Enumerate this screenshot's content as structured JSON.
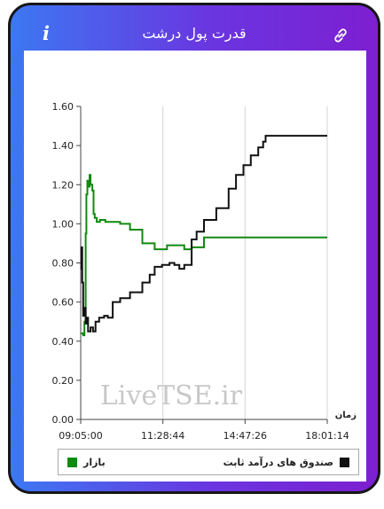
{
  "header": {
    "title": "قدرت پول درشت",
    "info_icon": "i",
    "link_icon": "link-icon"
  },
  "chart_data": {
    "type": "line",
    "x_label": "زمان",
    "x_ticks": [
      "09:05:00",
      "11:28:44",
      "14:47:26",
      "18:01:14"
    ],
    "y_ticks": [
      "0.00",
      "0.20",
      "0.40",
      "0.60",
      "0.80",
      "1.00",
      "1.20",
      "1.40",
      "1.60"
    ],
    "ylim": [
      0,
      1.6
    ],
    "watermark": "LiveTSE.ir",
    "legend_position": "bottom",
    "series": [
      {
        "name": "بازار",
        "color": "#108a10",
        "points": [
          [
            0,
            0.44
          ],
          [
            0.01,
            0.43
          ],
          [
            0.015,
            0.5
          ],
          [
            0.02,
            0.95
          ],
          [
            0.023,
            1.15
          ],
          [
            0.027,
            1.22
          ],
          [
            0.033,
            1.19
          ],
          [
            0.036,
            1.25
          ],
          [
            0.04,
            1.2
          ],
          [
            0.047,
            1.17
          ],
          [
            0.052,
            1.05
          ],
          [
            0.057,
            1.03
          ],
          [
            0.065,
            1.01
          ],
          [
            0.078,
            1.02
          ],
          [
            0.1,
            1.01
          ],
          [
            0.16,
            1.0
          ],
          [
            0.2,
            0.97
          ],
          [
            0.25,
            0.9
          ],
          [
            0.3,
            0.87
          ],
          [
            0.35,
            0.89
          ],
          [
            0.42,
            0.87
          ],
          [
            0.45,
            0.88
          ],
          [
            0.5,
            0.93
          ],
          [
            0.55,
            0.93
          ],
          [
            0.7,
            0.93
          ],
          [
            0.85,
            0.93
          ],
          [
            1.0,
            0.93
          ]
        ]
      },
      {
        "name": "صندوق های درآمد ثابت",
        "color": "#111111",
        "points": [
          [
            0,
            0.77
          ],
          [
            0.003,
            0.88
          ],
          [
            0.006,
            0.7
          ],
          [
            0.01,
            0.53
          ],
          [
            0.015,
            0.57
          ],
          [
            0.02,
            0.49
          ],
          [
            0.025,
            0.52
          ],
          [
            0.03,
            0.45
          ],
          [
            0.04,
            0.47
          ],
          [
            0.05,
            0.45
          ],
          [
            0.06,
            0.5
          ],
          [
            0.075,
            0.52
          ],
          [
            0.095,
            0.53
          ],
          [
            0.11,
            0.52
          ],
          [
            0.13,
            0.6
          ],
          [
            0.16,
            0.62
          ],
          [
            0.2,
            0.65
          ],
          [
            0.25,
            0.7
          ],
          [
            0.28,
            0.74
          ],
          [
            0.3,
            0.78
          ],
          [
            0.33,
            0.79
          ],
          [
            0.36,
            0.8
          ],
          [
            0.38,
            0.79
          ],
          [
            0.4,
            0.77
          ],
          [
            0.42,
            0.79
          ],
          [
            0.45,
            0.92
          ],
          [
            0.47,
            0.96
          ],
          [
            0.5,
            1.02
          ],
          [
            0.55,
            1.08
          ],
          [
            0.6,
            1.18
          ],
          [
            0.63,
            1.25
          ],
          [
            0.66,
            1.3
          ],
          [
            0.69,
            1.35
          ],
          [
            0.72,
            1.39
          ],
          [
            0.74,
            1.42
          ],
          [
            0.75,
            1.45
          ],
          [
            0.9,
            1.45
          ],
          [
            1.0,
            1.45
          ]
        ]
      }
    ]
  }
}
